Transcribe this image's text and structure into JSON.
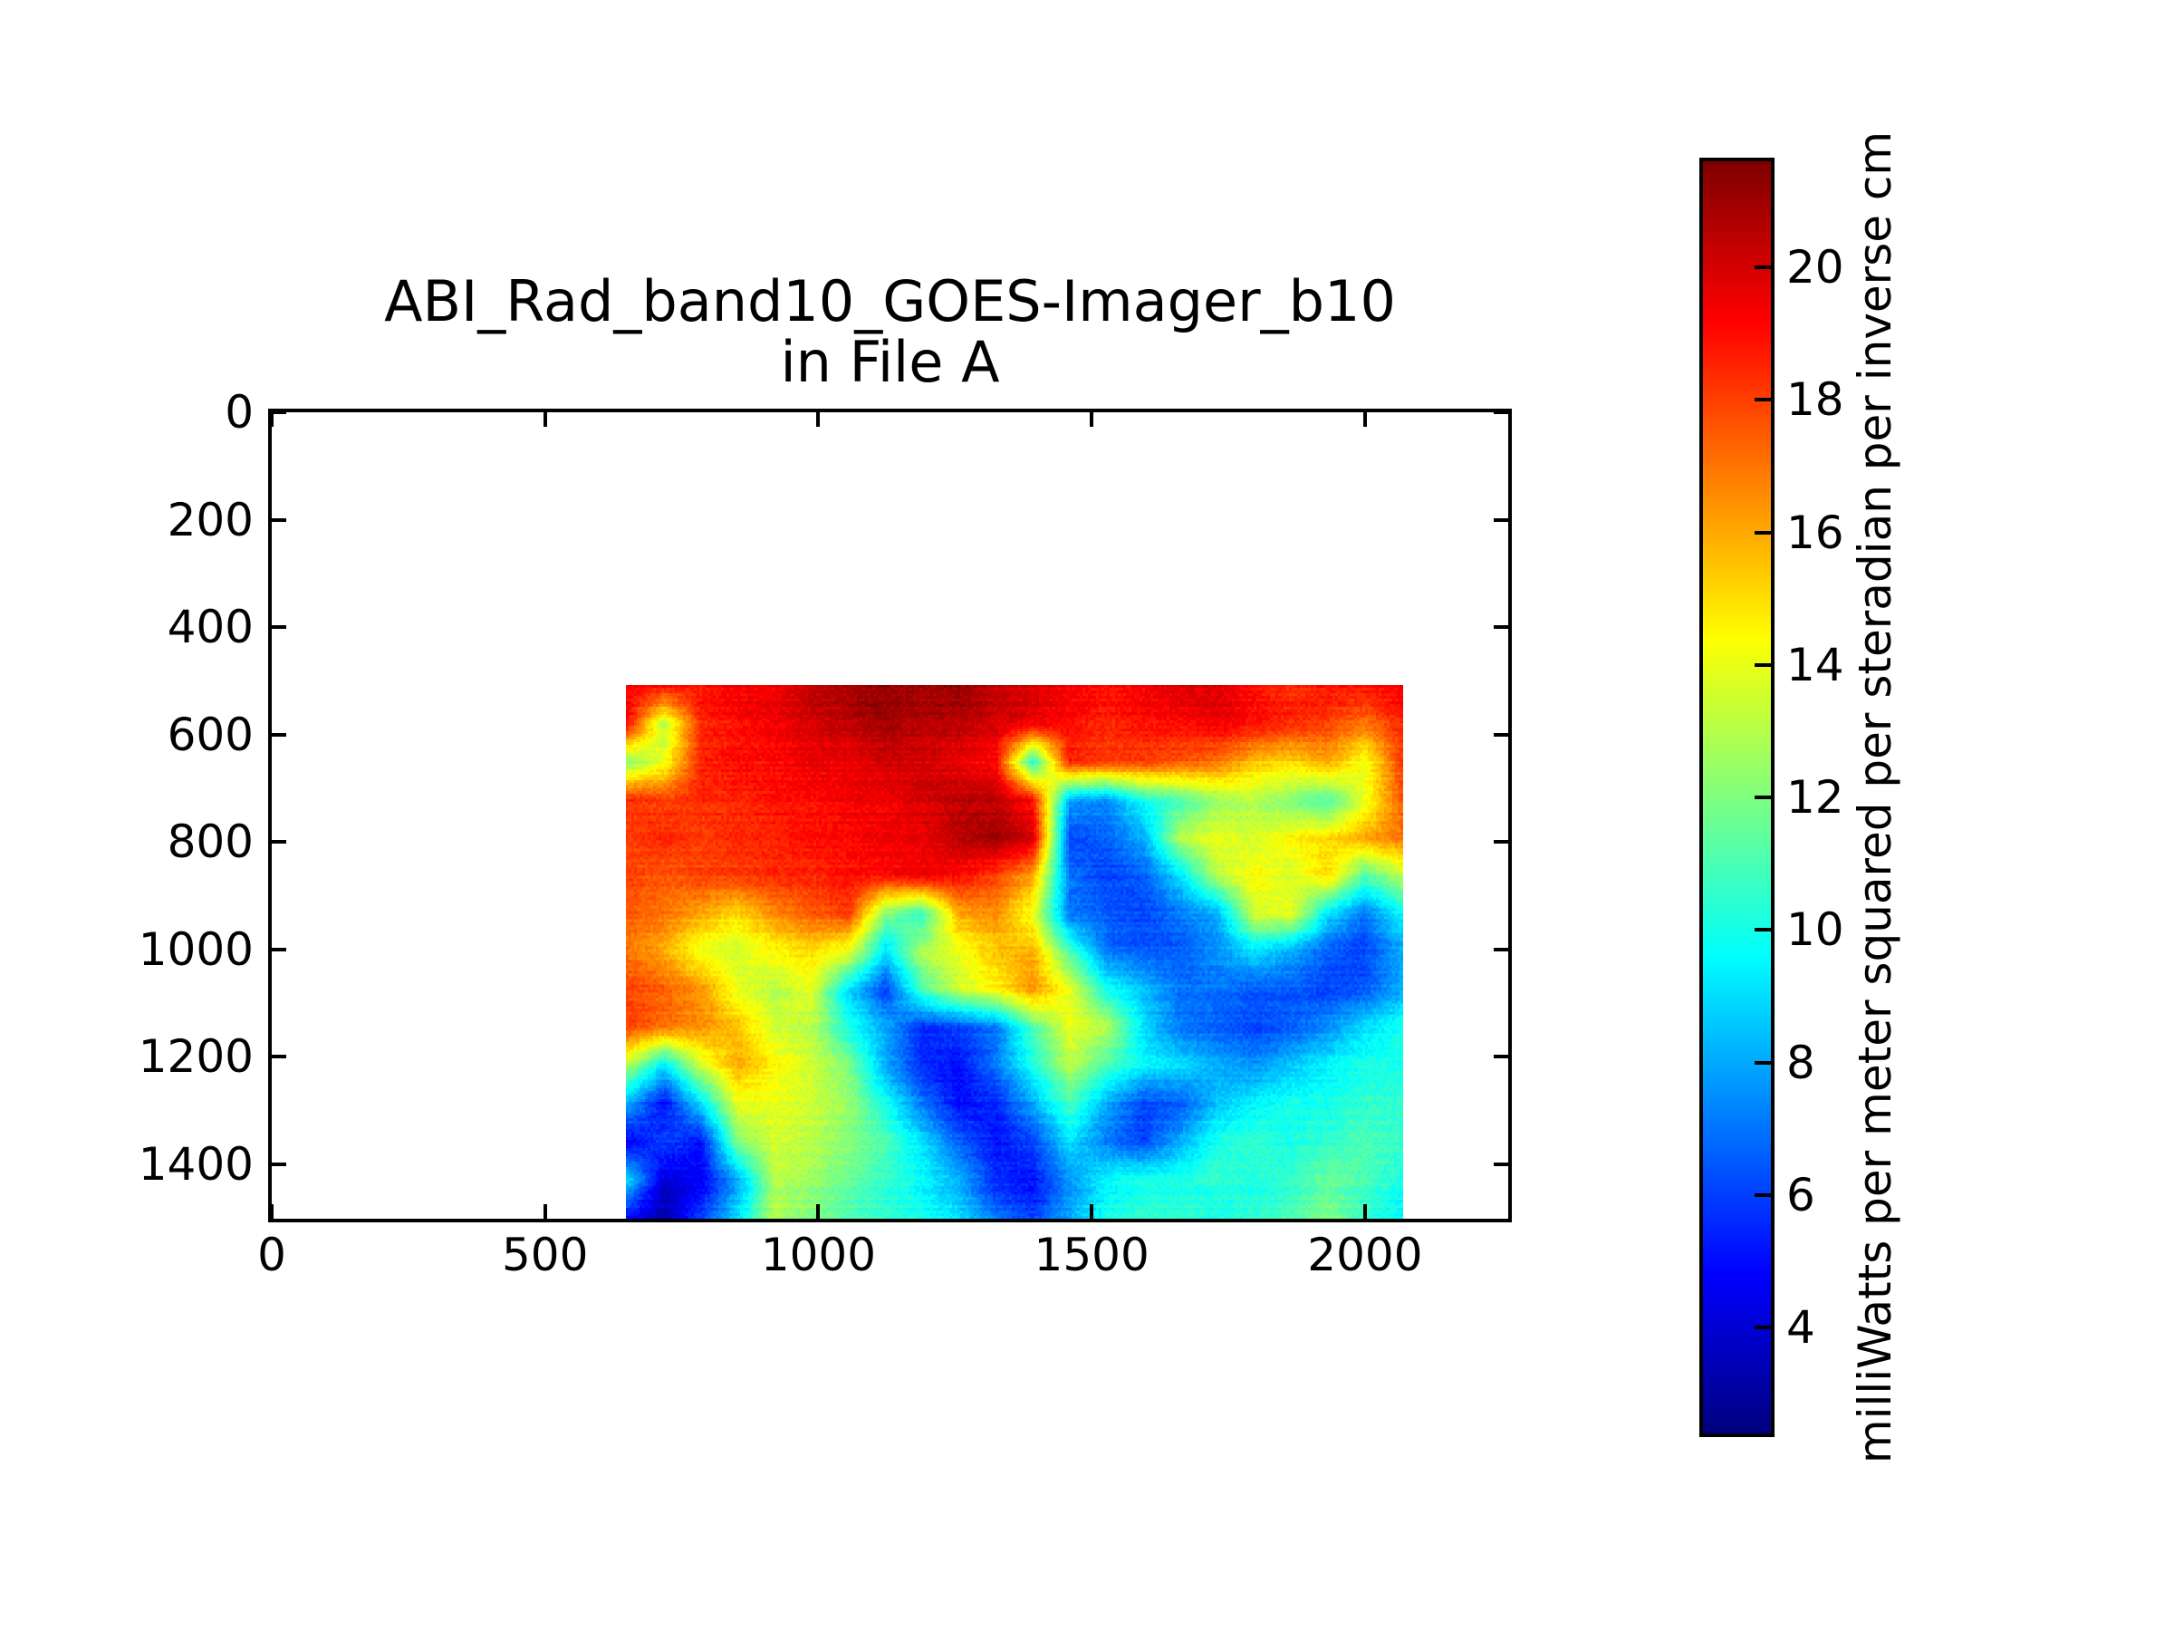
{
  "chart_data": {
    "type": "heatmap",
    "title": "ABI_Rad_band10_GOES-Imager_b10 in File A",
    "title_lines": [
      "ABI_Rad_band10_GOES-Imager_b10",
      "in File A"
    ],
    "colormap": "jet",
    "grid_on": false,
    "xlim": [
      0,
      2262
    ],
    "ylim": [
      1502,
      0
    ],
    "xticks": [
      0,
      500,
      1000,
      1500,
      2000
    ],
    "yticks": [
      0,
      200,
      400,
      600,
      800,
      1000,
      1200,
      1400
    ],
    "colorbar": {
      "label": "milliWatts per meter squared per steradian per inverse cm",
      "ticks": [
        4,
        6,
        8,
        10,
        12,
        14,
        16,
        18,
        20
      ],
      "vmin": 2.4,
      "vmax": 21.6,
      "position": "right"
    },
    "image_extent": {
      "x0": 648,
      "x1": 2070,
      "y0": 508,
      "y1": 1502
    },
    "grid": {
      "cols": 22,
      "rows": 15,
      "comment_units": "approximate radiance values sampled on a coarse grid, mW m-2 sr-1 (cm-1)-1",
      "values": [
        [
          19.5,
          19.0,
          19.0,
          19.5,
          19.5,
          20.5,
          21.0,
          21.3,
          21.0,
          21.3,
          20.5,
          20.0,
          19.5,
          19.0,
          19.5,
          20.0,
          20.0,
          19.0,
          18.5,
          19.0,
          19.0,
          19.5
        ],
        [
          19.0,
          13.0,
          18.5,
          19.0,
          19.5,
          20.0,
          20.5,
          21.0,
          20.5,
          20.5,
          20.0,
          19.5,
          19.0,
          18.5,
          19.0,
          19.0,
          19.5,
          19.0,
          18.5,
          18.0,
          17.0,
          18.5
        ],
        [
          12.0,
          14.0,
          18.5,
          19.0,
          19.0,
          19.5,
          19.5,
          20.0,
          20.0,
          19.5,
          19.0,
          10.0,
          18.5,
          18.0,
          18.0,
          17.5,
          17.0,
          15.5,
          15.0,
          16.0,
          14.0,
          18.0
        ],
        [
          18.5,
          18.0,
          18.5,
          18.5,
          19.0,
          19.0,
          19.5,
          19.5,
          20.0,
          20.5,
          20.5,
          19.0,
          8.0,
          7.5,
          10.0,
          11.0,
          12.5,
          13.0,
          12.0,
          11.0,
          14.0,
          17.5
        ],
        [
          18.0,
          18.5,
          18.0,
          18.5,
          18.5,
          19.0,
          19.0,
          19.5,
          19.5,
          20.5,
          21.0,
          20.0,
          6.0,
          6.5,
          8.0,
          13.0,
          14.0,
          13.5,
          14.5,
          15.0,
          16.0,
          17.0
        ],
        [
          18.0,
          17.5,
          18.0,
          18.0,
          18.5,
          18.5,
          19.0,
          19.0,
          19.5,
          19.0,
          18.0,
          16.0,
          7.0,
          6.0,
          6.5,
          9.0,
          13.0,
          14.5,
          13.5,
          15.0,
          11.0,
          13.0
        ],
        [
          17.5,
          17.0,
          16.0,
          15.0,
          16.5,
          17.5,
          18.0,
          12.0,
          10.5,
          16.0,
          16.5,
          14.0,
          7.0,
          6.5,
          6.0,
          7.0,
          8.0,
          13.5,
          14.0,
          9.0,
          7.0,
          9.5
        ],
        [
          17.0,
          16.0,
          14.0,
          13.5,
          14.5,
          15.0,
          14.0,
          9.0,
          13.0,
          14.0,
          15.5,
          16.0,
          11.0,
          7.0,
          6.5,
          6.5,
          7.5,
          9.0,
          8.0,
          6.5,
          6.0,
          8.0
        ],
        [
          18.0,
          17.5,
          16.5,
          14.0,
          13.0,
          14.0,
          9.0,
          6.0,
          11.0,
          13.5,
          14.5,
          16.5,
          14.0,
          10.0,
          8.5,
          7.0,
          7.0,
          6.5,
          6.5,
          6.0,
          6.5,
          8.0
        ],
        [
          18.0,
          17.0,
          16.5,
          15.5,
          13.5,
          13.0,
          10.0,
          8.0,
          5.5,
          6.0,
          7.0,
          11.0,
          14.0,
          13.0,
          9.0,
          7.0,
          6.5,
          6.0,
          6.5,
          7.5,
          9.0,
          10.0
        ],
        [
          13.0,
          9.0,
          13.5,
          16.0,
          14.5,
          13.5,
          12.0,
          8.0,
          5.5,
          5.0,
          7.0,
          10.0,
          13.0,
          11.0,
          9.5,
          9.0,
          8.0,
          7.5,
          8.5,
          9.5,
          10.0,
          10.0
        ],
        [
          8.0,
          5.0,
          9.0,
          14.0,
          14.0,
          13.5,
          12.5,
          10.0,
          7.0,
          5.0,
          5.5,
          8.0,
          11.0,
          8.0,
          6.0,
          6.5,
          8.5,
          9.5,
          10.0,
          10.0,
          10.5,
          10.5
        ],
        [
          4.5,
          6.0,
          5.0,
          12.0,
          13.5,
          13.0,
          12.0,
          11.0,
          9.0,
          6.5,
          5.0,
          6.0,
          9.0,
          7.0,
          6.0,
          8.0,
          10.0,
          10.5,
          10.0,
          10.5,
          11.0,
          10.5
        ],
        [
          9.0,
          4.0,
          4.5,
          8.0,
          13.0,
          12.5,
          11.5,
          10.5,
          9.5,
          8.0,
          5.5,
          5.0,
          7.5,
          9.5,
          10.0,
          10.0,
          10.5,
          10.0,
          10.5,
          11.5,
          11.0,
          10.0
        ],
        [
          5.0,
          3.2,
          6.0,
          9.0,
          13.0,
          12.0,
          11.0,
          10.5,
          10.0,
          9.0,
          7.0,
          6.0,
          8.0,
          10.0,
          10.5,
          10.5,
          10.0,
          10.5,
          11.0,
          12.0,
          10.5,
          9.5
        ]
      ]
    },
    "colors": {
      "spine": "#000000",
      "background": "#ffffff",
      "cmap_stops_top_to_bottom": [
        "#800000",
        "#ff0000",
        "#ffff00",
        "#00ffff",
        "#0000ff",
        "#000080"
      ]
    }
  }
}
